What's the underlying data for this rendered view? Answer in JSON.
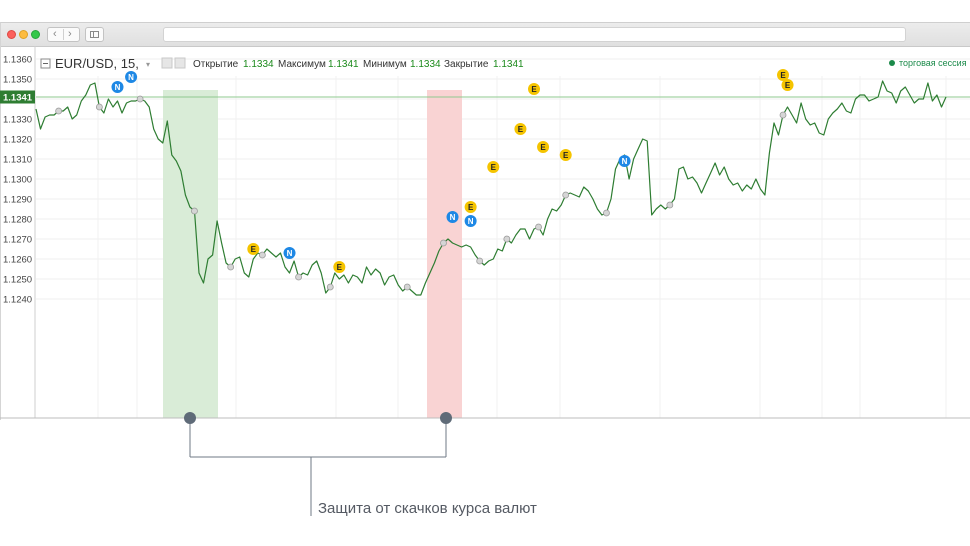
{
  "browser": {
    "back_glyph": "‹",
    "forward_glyph": "›",
    "sidebar_icon": "sidebar-icon"
  },
  "header": {
    "symbol": "EUR/USD, 15,",
    "open_label": "Открытие",
    "open_value": "1.1334",
    "high_label": "Максимум",
    "high_value": "1.1341",
    "low_label": "Минимум",
    "low_value": "1.1334",
    "close_label": "Закрытие",
    "close_value": "1.1341",
    "session_label": "торговая сессия"
  },
  "colors": {
    "line": "#2e7d32",
    "value_green": "#1b8a1b",
    "price_badge": "#2e7d32",
    "protect_green": "#d9ecd7",
    "protect_red": "#f9d3d3",
    "marker_n": "#1e88e5",
    "marker_e": "#f5c400",
    "session_dot": "#1b8a4a"
  },
  "chart_data": {
    "type": "line",
    "current_price": "1.1341",
    "y_ticks": [
      "1.1360",
      "1.1350",
      "1.1340",
      "1.1330",
      "1.1320",
      "1.1310",
      "1.1300",
      "1.1290",
      "1.1280",
      "1.1270",
      "1.1260",
      "1.1250",
      "1.1240"
    ],
    "ylim": [
      1.1238,
      1.1364
    ],
    "values": [
      1.1335,
      1.1325,
      1.1331,
      1.1332,
      1.1332,
      1.1334,
      1.1334,
      1.1336,
      1.133,
      1.1332,
      1.1339,
      1.1342,
      1.1347,
      1.1348,
      1.1336,
      1.1333,
      1.134,
      1.1336,
      1.1339,
      1.1333,
      1.1338,
      1.1339,
      1.1339,
      1.134,
      1.1339,
      1.1336,
      1.1325,
      1.132,
      1.1318,
      1.1329,
      1.1312,
      1.1309,
      1.1304,
      1.1292,
      1.1286,
      1.1284,
      1.1253,
      1.1248,
      1.126,
      1.1262,
      1.1279,
      1.1268,
      1.1258,
      1.1256,
      1.126,
      1.1261,
      1.1253,
      1.1251,
      1.126,
      1.1263,
      1.1262,
      1.1265,
      1.1263,
      1.1261,
      1.1263,
      1.1256,
      1.1253,
      1.1259,
      1.1251,
      1.1253,
      1.1252,
      1.1257,
      1.1259,
      1.1253,
      1.1243,
      1.1246,
      1.1253,
      1.125,
      1.1252,
      1.1248,
      1.1252,
      1.1251,
      1.1248,
      1.1256,
      1.1252,
      1.1255,
      1.1253,
      1.1247,
      1.1251,
      1.1252,
      1.1247,
      1.1244,
      1.1246,
      1.1244,
      1.1242,
      1.1242,
      1.1248,
      1.1253,
      1.1258,
      1.1264,
      1.1268,
      1.127,
      1.1268,
      1.1267,
      1.1266,
      1.1267,
      1.1266,
      1.1262,
      1.1259,
      1.1257,
      1.1259,
      1.126,
      1.1265,
      1.1264,
      1.127,
      1.1268,
      1.1272,
      1.1275,
      1.1275,
      1.127,
      1.1275,
      1.1276,
      1.1272,
      1.128,
      1.1285,
      1.1284,
      1.1287,
      1.1292,
      1.1293,
      1.1292,
      1.1291,
      1.1296,
      1.1294,
      1.129,
      1.1285,
      1.1282,
      1.1283,
      1.129,
      1.1305,
      1.131,
      1.1312,
      1.13,
      1.131,
      1.1315,
      1.132,
      1.1319,
      1.1282,
      1.1285,
      1.1287,
      1.1285,
      1.1287,
      1.129,
      1.1305,
      1.1306,
      1.13,
      1.1301,
      1.1298,
      1.1293,
      1.1298,
      1.1303,
      1.1308,
      1.1302,
      1.1306,
      1.13,
      1.1297,
      1.1298,
      1.1294,
      1.1297,
      1.1295,
      1.13,
      1.1295,
      1.1292,
      1.1313,
      1.1328,
      1.1322,
      1.1332,
      1.1336,
      1.1332,
      1.1328,
      1.1338,
      1.133,
      1.1327,
      1.1328,
      1.1323,
      1.1322,
      1.133,
      1.1333,
      1.1335,
      1.1338,
      1.1334,
      1.1333,
      1.134,
      1.1342,
      1.1342,
      1.1339,
      1.134,
      1.1341,
      1.1349,
      1.1344,
      1.1343,
      1.1338,
      1.1344,
      1.1346,
      1.1342,
      1.1338,
      1.134,
      1.134,
      1.1348,
      1.1339,
      1.1342,
      1.1336,
      1.1341
    ],
    "markers": [
      {
        "type": "N",
        "at": 18,
        "price": 1.1346
      },
      {
        "type": "N",
        "at": 21,
        "price": 1.1351
      },
      {
        "type": "E",
        "at": 48,
        "price": 1.1265
      },
      {
        "type": "N",
        "at": 56,
        "price": 1.1263
      },
      {
        "type": "E",
        "at": 67,
        "price": 1.1256
      },
      {
        "type": "N",
        "at": 92,
        "price": 1.1281
      },
      {
        "type": "E",
        "at": 96,
        "price": 1.1286
      },
      {
        "type": "N",
        "at": 96,
        "price": 1.1279
      },
      {
        "type": "E",
        "at": 101,
        "price": 1.1306
      },
      {
        "type": "E",
        "at": 107,
        "price": 1.1325
      },
      {
        "type": "E",
        "at": 110,
        "price": 1.1345
      },
      {
        "type": "E",
        "at": 112,
        "price": 1.1316
      },
      {
        "type": "E",
        "at": 117,
        "price": 1.1312
      },
      {
        "type": "N",
        "at": 130,
        "price": 1.1309
      },
      {
        "type": "E",
        "at": 165,
        "price": 1.1352
      },
      {
        "type": "E",
        "at": 166,
        "price": 1.1347
      }
    ]
  },
  "annotation": {
    "text": "Защита от скачков курса валют"
  }
}
